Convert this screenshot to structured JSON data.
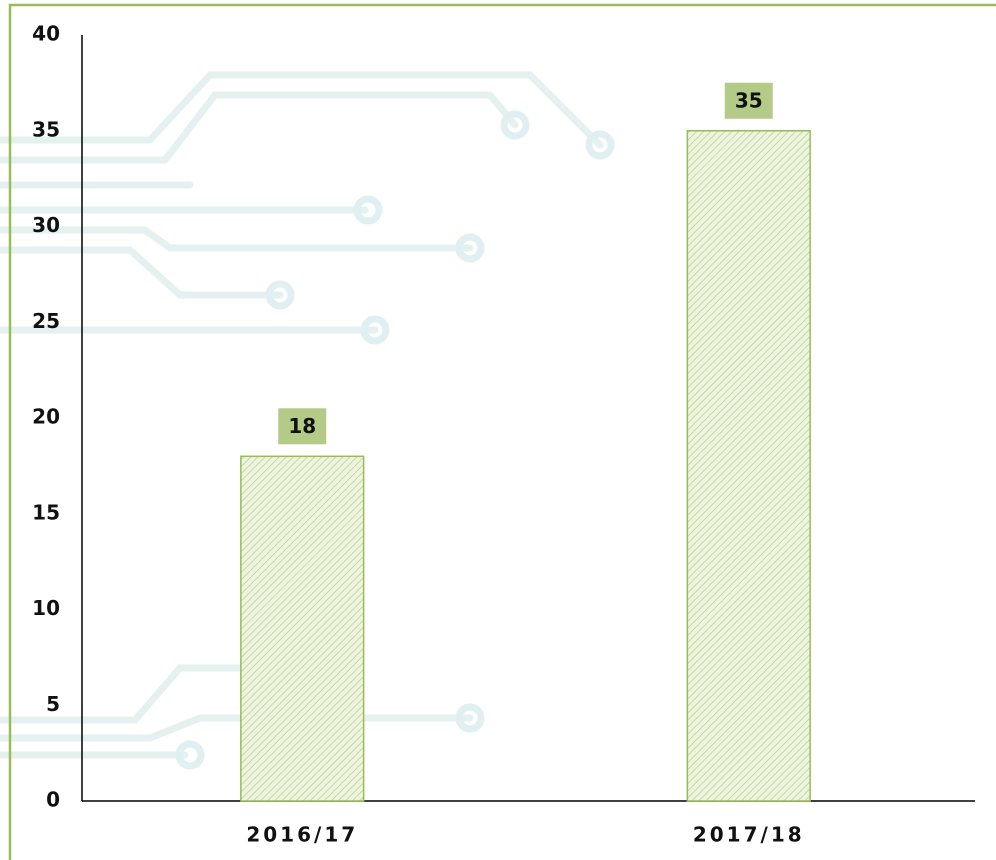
{
  "chart_data": {
    "type": "bar",
    "categories": [
      "2016/17",
      "2017/18"
    ],
    "values": [
      18,
      35
    ],
    "color": "#9bbb59",
    "ylim": [
      0,
      40
    ],
    "yticks": [
      0,
      5,
      10,
      15,
      20,
      25,
      30,
      35,
      40
    ],
    "grid": false
  }
}
